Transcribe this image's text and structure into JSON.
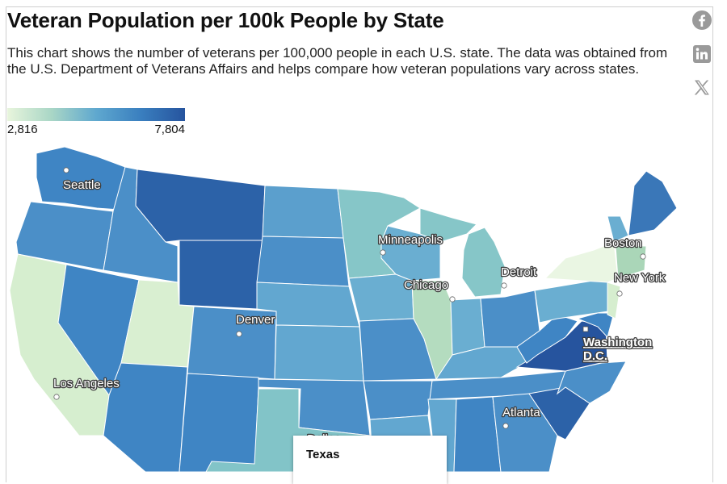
{
  "header": {
    "title": "Veteran Population per 100k People by State",
    "description": "This chart shows the number of veterans per 100,000 people in each U.S. state. The data was obtained from the U.S. Department of Veterans Affairs and helps compare how veteran populations vary across states."
  },
  "share": {
    "facebook_icon": "facebook-icon",
    "linkedin_icon": "linkedin-icon",
    "x_icon": "x-twitter-icon",
    "icon_color": "#9a9a9a"
  },
  "legend": {
    "min_label": "2,816",
    "max_label": "7,804",
    "min_value": 2816,
    "max_value": 7804,
    "colors": [
      "#e8f5dc",
      "#a9d6c6",
      "#5fa8cf",
      "#3a7fbf",
      "#26549e"
    ]
  },
  "map": {
    "cities": [
      {
        "name": "Seattle"
      },
      {
        "name": "Minneapolis"
      },
      {
        "name": "Boston"
      },
      {
        "name": "Detroit"
      },
      {
        "name": "Chicago"
      },
      {
        "name": "New York"
      },
      {
        "name": "Denver"
      },
      {
        "name": "Washington D.C.",
        "line1": "Washington",
        "line2": "D.C."
      },
      {
        "name": "Los Angeles"
      },
      {
        "name": "Atlanta"
      },
      {
        "name": "Dallas"
      }
    ],
    "highlighted_state": "Texas"
  },
  "tooltip": {
    "title": "Texas"
  }
}
